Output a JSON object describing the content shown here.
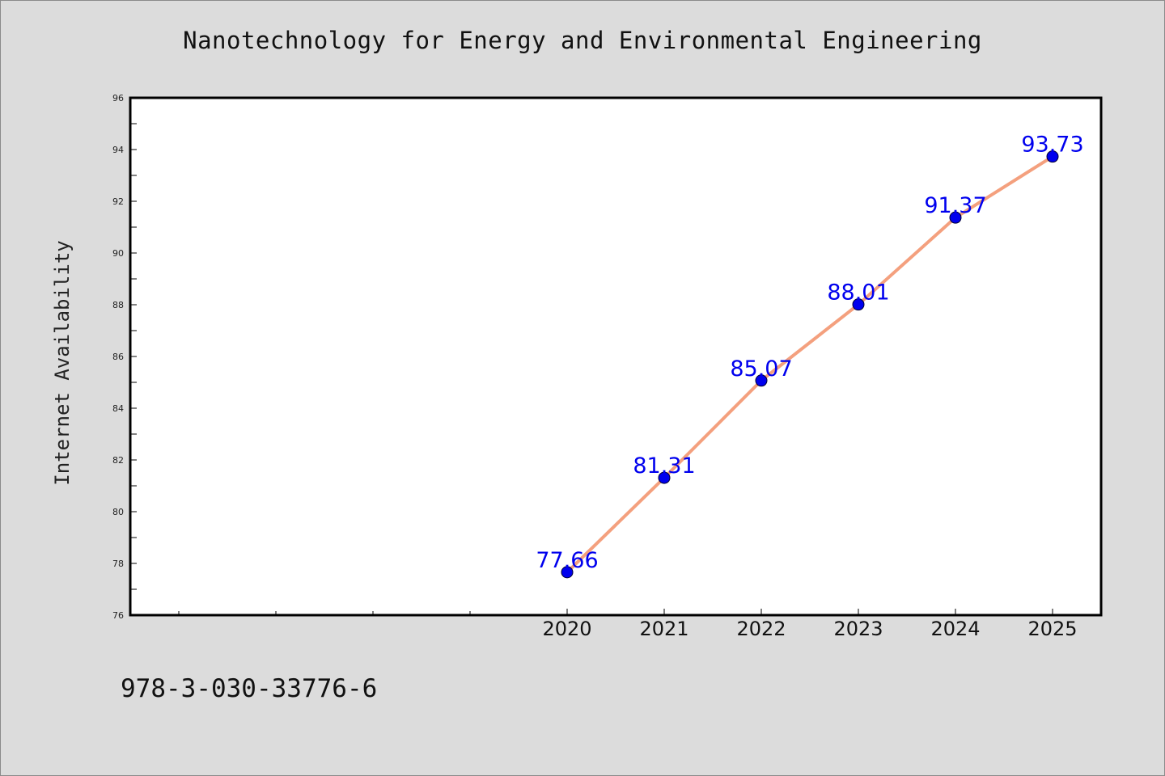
{
  "chart_data": {
    "type": "line",
    "title": "Nanotechnology for Energy and Environmental Engineering",
    "xlabel": "",
    "ylabel": "Internet Availability",
    "x": [
      2020,
      2021,
      2022,
      2023,
      2024,
      2025
    ],
    "xticks": [
      "2020",
      "2021",
      "2022",
      "2023",
      "2024",
      "2025"
    ],
    "xlim": [
      2015.5,
      2025.5
    ],
    "series": [
      {
        "values": [
          77.66,
          81.31,
          85.07,
          88.01,
          91.37,
          93.73
        ],
        "labels": [
          "77.66",
          "81.31",
          "85.07",
          "88.01",
          "91.37",
          "93.73"
        ]
      }
    ],
    "ylim": [
      76,
      96
    ],
    "yticks": [
      "76",
      "78",
      "80",
      "82",
      "84",
      "86",
      "88",
      "90",
      "92",
      "94",
      "96"
    ],
    "grid": false,
    "line_color": "#f4a07e",
    "marker_color": "#0000ee",
    "label_color": "#0000ee"
  },
  "footer_text": "978-3-030-33776-6"
}
